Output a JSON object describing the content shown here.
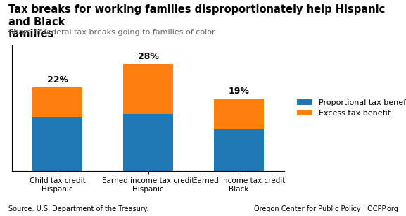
{
  "chart_data": {
    "type": "bar",
    "stacked": true,
    "title": "Tax breaks for working families disproportionately help Hispanic and Black\nfamilies",
    "subtitle": "Share of federal tax breaks going to families of color",
    "source": "Source: U.S. Department of the Treasury.",
    "footer": "Oregon Center for Public Policy | OCPP.org",
    "categories": [
      "Child tax credit\nHispanic",
      "Earned income tax credit\nHispanic",
      "Earned income tax credit\nBlack"
    ],
    "series": [
      {
        "name": "Proportional tax benefit",
        "values": [
          14,
          15,
          11
        ]
      },
      {
        "name": "Excess tax benefit",
        "values": [
          8,
          13,
          8
        ]
      }
    ],
    "value_labels": [
      "22%",
      "28%",
      "19%"
    ],
    "data_labels": true,
    "ylim": [
      0,
      33
    ],
    "tick_labels": "x",
    "grid": false,
    "legend": "center left"
  }
}
